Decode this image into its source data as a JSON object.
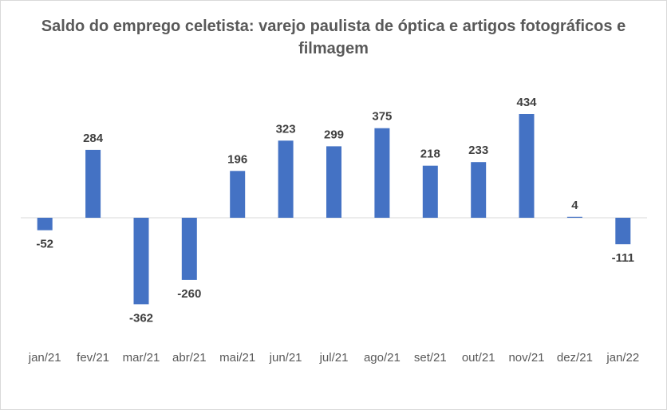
{
  "chart_data": {
    "type": "bar",
    "title": "Saldo do emprego celetista: varejo paulista de óptica e artigos fotográficos e filmagem",
    "categories": [
      "jan/21",
      "fev/21",
      "mar/21",
      "abr/21",
      "mai/21",
      "jun/21",
      "jul/21",
      "ago/21",
      "set/21",
      "out/21",
      "nov/21",
      "dez/21",
      "jan/22"
    ],
    "values": [
      -52,
      284,
      -362,
      -260,
      196,
      323,
      299,
      375,
      218,
      233,
      434,
      4,
      -111
    ],
    "data_labels": [
      "-52",
      "284",
      "-362",
      "-260",
      "196",
      "323",
      "299",
      "375",
      "218",
      "233",
      "434",
      "4",
      "-111"
    ],
    "xlabel": "",
    "ylabel": "",
    "grid": false,
    "legend": "none",
    "colors": {
      "bar": "#4472C4",
      "axis": "#d9d9d9",
      "text": "#404040",
      "title": "#595959"
    }
  }
}
